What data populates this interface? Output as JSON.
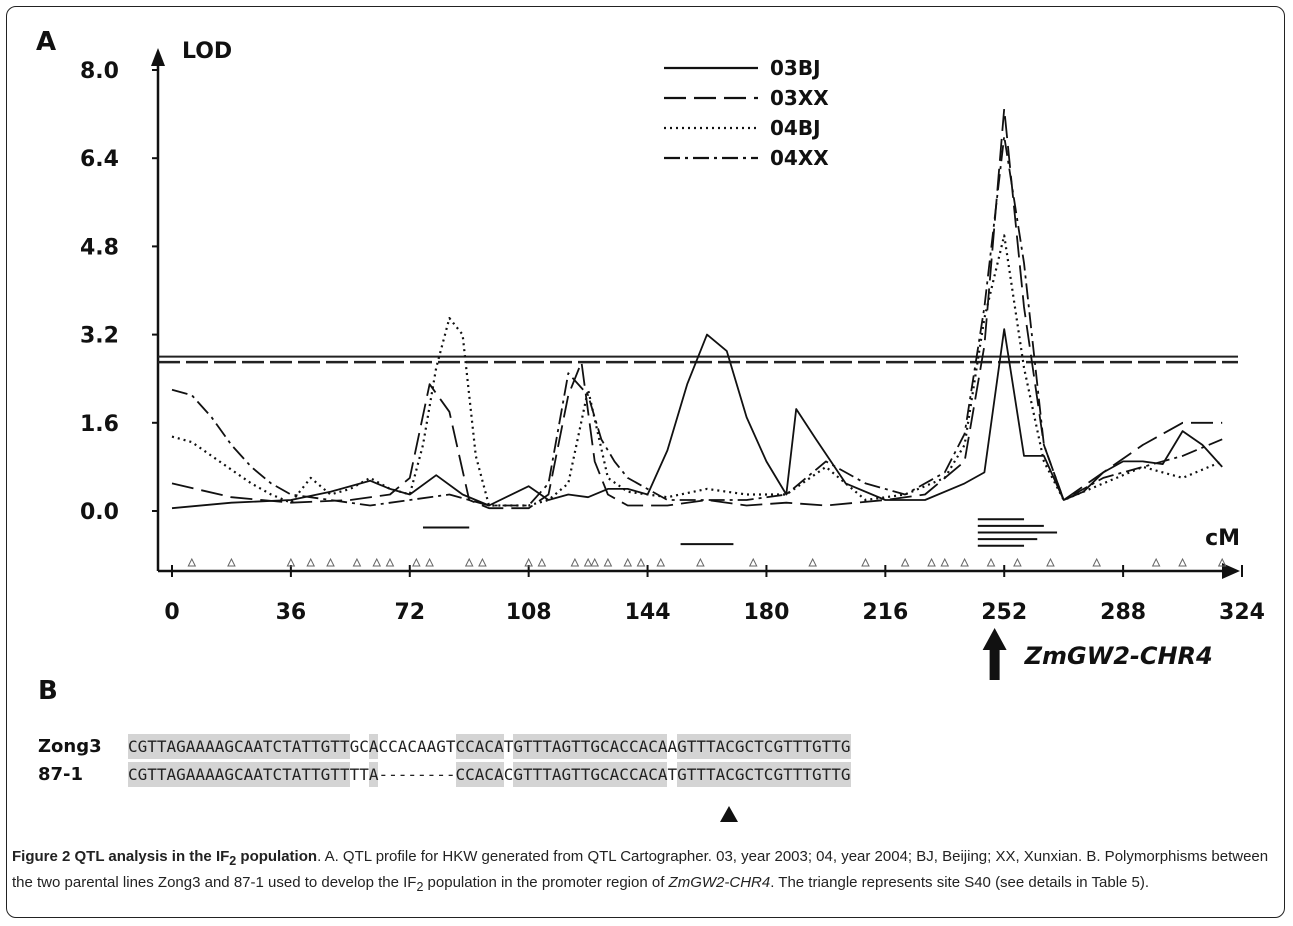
{
  "panel_a_label": "A",
  "panel_b_label": "B",
  "chart_data": {
    "type": "line",
    "ylabel": "LOD",
    "xlabel": "cM",
    "xlim": [
      0,
      324
    ],
    "ylim": [
      0,
      8.0
    ],
    "yticks": [
      "8.0",
      "6.4",
      "4.8",
      "3.2",
      "1.6",
      "0.0"
    ],
    "ytick_values": [
      8.0,
      6.4,
      4.8,
      3.2,
      1.6,
      0.0
    ],
    "xticks": [
      "0",
      "36",
      "72",
      "108",
      "144",
      "180",
      "216",
      "252",
      "288",
      "324"
    ],
    "xtick_values": [
      0,
      36,
      72,
      108,
      144,
      180,
      216,
      252,
      288,
      324
    ],
    "legend_position": "top-center",
    "thresholds": [
      2.8,
      2.7
    ],
    "series": [
      {
        "name": "03BJ",
        "style": "solid",
        "x": [
          0,
          18,
          36,
          48,
          60,
          66,
          72,
          80,
          88,
          96,
          108,
          114,
          120,
          126,
          132,
          138,
          144,
          150,
          156,
          162,
          168,
          174,
          180,
          186,
          189,
          195,
          204,
          216,
          228,
          240,
          246,
          252,
          258,
          264,
          270,
          276,
          282,
          288,
          294,
          300,
          306,
          312,
          318
        ],
        "y": [
          0.05,
          0.15,
          0.2,
          0.35,
          0.55,
          0.4,
          0.3,
          0.65,
          0.3,
          0.1,
          0.45,
          0.2,
          0.3,
          0.25,
          0.4,
          0.4,
          0.3,
          1.1,
          2.3,
          3.2,
          2.9,
          1.7,
          0.9,
          0.3,
          1.85,
          1.3,
          0.5,
          0.2,
          0.2,
          0.5,
          0.7,
          3.3,
          1.0,
          1.0,
          0.2,
          0.35,
          0.7,
          0.9,
          0.9,
          0.85,
          1.45,
          1.2,
          0.8
        ]
      },
      {
        "name": "03XX",
        "style": "dashed",
        "x": [
          0,
          18,
          36,
          54,
          66,
          72,
          78,
          84,
          90,
          96,
          102,
          108,
          114,
          120,
          124,
          128,
          132,
          138,
          150,
          162,
          174,
          186,
          198,
          216,
          228,
          240,
          246,
          252,
          258,
          264,
          270,
          282,
          294,
          306,
          318
        ],
        "y": [
          0.5,
          0.25,
          0.15,
          0.2,
          0.3,
          0.6,
          2.3,
          1.8,
          0.2,
          0.05,
          0.05,
          0.05,
          0.3,
          2.1,
          2.7,
          0.9,
          0.3,
          0.1,
          0.1,
          0.2,
          0.1,
          0.15,
          0.1,
          0.2,
          0.3,
          0.9,
          3.0,
          7.3,
          3.7,
          1.2,
          0.2,
          0.7,
          1.2,
          1.6,
          1.6
        ]
      },
      {
        "name": "04BJ",
        "style": "dotted",
        "x": [
          0,
          6,
          12,
          18,
          24,
          30,
          36,
          42,
          48,
          54,
          60,
          66,
          72,
          76,
          80,
          84,
          88,
          92,
          96,
          102,
          108,
          114,
          120,
          126,
          132,
          138,
          150,
          162,
          174,
          186,
          198,
          210,
          222,
          234,
          240,
          246,
          252,
          258,
          264,
          270,
          282,
          294,
          306,
          318
        ],
        "y": [
          1.35,
          1.25,
          1.0,
          0.75,
          0.5,
          0.3,
          0.15,
          0.6,
          0.3,
          0.4,
          0.6,
          0.4,
          0.3,
          1.2,
          2.6,
          3.5,
          3.2,
          1.0,
          0.1,
          0.1,
          0.1,
          0.2,
          0.5,
          2.2,
          0.6,
          0.35,
          0.25,
          0.4,
          0.3,
          0.3,
          0.8,
          0.2,
          0.3,
          0.6,
          1.2,
          3.5,
          5.0,
          2.6,
          0.9,
          0.2,
          0.5,
          0.8,
          0.6,
          0.9
        ]
      },
      {
        "name": "04XX",
        "style": "dashdot",
        "x": [
          0,
          6,
          12,
          18,
          24,
          30,
          36,
          48,
          60,
          72,
          84,
          96,
          108,
          114,
          120,
          126,
          130,
          134,
          138,
          150,
          162,
          174,
          186,
          198,
          210,
          222,
          234,
          240,
          246,
          252,
          258,
          264,
          270,
          282,
          294,
          306,
          318
        ],
        "y": [
          2.2,
          2.1,
          1.7,
          1.2,
          0.8,
          0.5,
          0.3,
          0.2,
          0.1,
          0.2,
          0.3,
          0.1,
          0.1,
          0.5,
          2.5,
          2.1,
          1.3,
          0.9,
          0.6,
          0.2,
          0.2,
          0.2,
          0.3,
          0.9,
          0.5,
          0.3,
          0.7,
          1.4,
          3.7,
          6.8,
          4.5,
          1.2,
          0.2,
          0.6,
          0.8,
          1.0,
          1.3
        ]
      }
    ],
    "qtl_interval_bars": [
      {
        "from": 76,
        "to": 90,
        "lod": -0.3
      },
      {
        "from": 154,
        "to": 170,
        "lod": -0.6
      },
      {
        "from": 244,
        "to": 258,
        "lod": -0.15
      },
      {
        "from": 244,
        "to": 264,
        "lod": -0.27
      },
      {
        "from": 244,
        "to": 268,
        "lod": -0.39
      },
      {
        "from": 244,
        "to": 262,
        "lod": -0.51
      },
      {
        "from": 244,
        "to": 258,
        "lod": -0.63
      }
    ],
    "marker_positions": [
      6,
      18,
      36,
      42,
      48,
      56,
      62,
      66,
      74,
      78,
      90,
      94,
      108,
      112,
      122,
      126,
      128,
      132,
      138,
      142,
      148,
      160,
      176,
      194,
      210,
      222,
      230,
      234,
      240,
      248,
      256,
      266,
      280,
      298,
      306,
      318
    ],
    "arrow_at": 250,
    "arrow_label": "ZmGW2-CHR4"
  },
  "panel_b": {
    "rows": [
      {
        "name": "Zong3",
        "blocks": [
          {
            "text": "CGTTAGAAAAGCAATCTATTGTT",
            "hl": true
          },
          {
            "text": "GC",
            "hl": false
          },
          {
            "text": "A",
            "hl": true
          },
          {
            "text": "CCACAAGT",
            "hl": false
          },
          {
            "text": "CCACA",
            "hl": true
          },
          {
            "text": "T",
            "hl": false
          },
          {
            "text": "GTTTAGTTGCACCACA",
            "hl": true
          },
          {
            "text": "A",
            "hl": false
          },
          {
            "text": "GTTTACGCTCGTTTGTTG",
            "hl": true
          }
        ]
      },
      {
        "name": "87-1",
        "blocks": [
          {
            "text": "CGTTAGAAAAGCAATCTATTGTT",
            "hl": true
          },
          {
            "text": "TT",
            "hl": false
          },
          {
            "text": "A",
            "hl": true
          },
          {
            "text": "--------",
            "hl": false
          },
          {
            "text": "CCACA",
            "hl": true
          },
          {
            "text": "C",
            "hl": false
          },
          {
            "text": "GTTTAGTTGCACCACA",
            "hl": true
          },
          {
            "text": "T",
            "hl": false
          },
          {
            "text": "GTTTACGCTCGTTTGTTG",
            "hl": true
          }
        ]
      }
    ]
  },
  "caption": {
    "title_prefix": "Figure 2 QTL analysis in the IF",
    "title_sub": "2",
    "title_suffix": " population",
    "text_1": ". A. QTL profile for HKW generated from QTL Cartographer. 03, year 2003; 04, year 2004; BJ, Beijing; XX, Xunxian. B. Polymorphisms between the two parental lines Zong3 and 87-1 used to develop the IF",
    "sub_2": "2",
    "text_2": " population in the promoter region of ",
    "gene": "ZmGW2-CHR4",
    "text_3": ". The triangle represents site S40 (see details in Table 5)."
  }
}
